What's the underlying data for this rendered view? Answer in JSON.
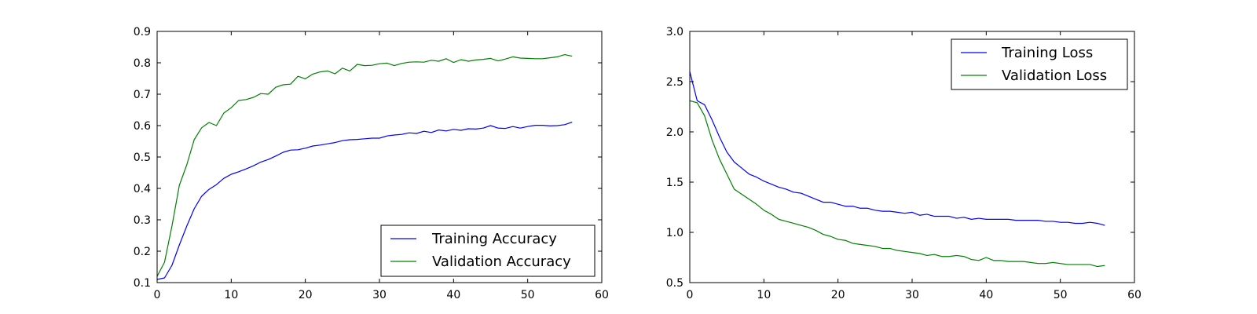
{
  "chart_data": [
    {
      "type": "line",
      "title": "",
      "xlabel": "",
      "ylabel": "",
      "xlim": [
        0,
        60
      ],
      "ylim": [
        0.1,
        0.9
      ],
      "xticks": [
        "0",
        "10",
        "20",
        "30",
        "40",
        "50",
        "60"
      ],
      "yticks": [
        "0.1",
        "0.2",
        "0.3",
        "0.4",
        "0.5",
        "0.6",
        "0.7",
        "0.8",
        "0.9"
      ],
      "grid": false,
      "legend_position": "lower-right",
      "series": [
        {
          "name": "Training Accuracy",
          "color": "#0000ff",
          "values": [
            0.11,
            0.115,
            0.155,
            0.22,
            0.28,
            0.335,
            0.375,
            0.397,
            0.412,
            0.432,
            0.445,
            0.453,
            0.462,
            0.472,
            0.484,
            0.492,
            0.503,
            0.515,
            0.522,
            0.523,
            0.528,
            0.535,
            0.538,
            0.542,
            0.546,
            0.552,
            0.555,
            0.556,
            0.558,
            0.56,
            0.56,
            0.567,
            0.57,
            0.572,
            0.577,
            0.575,
            0.582,
            0.578,
            0.586,
            0.583,
            0.588,
            0.585,
            0.59,
            0.589,
            0.592,
            0.6,
            0.592,
            0.591,
            0.597,
            0.592,
            0.597,
            0.601,
            0.601,
            0.599,
            0.6,
            0.603,
            0.611
          ]
        },
        {
          "name": "Validation Accuracy",
          "color": "#008000",
          "values": [
            0.12,
            0.165,
            0.28,
            0.41,
            0.475,
            0.555,
            0.593,
            0.61,
            0.6,
            0.64,
            0.657,
            0.68,
            0.683,
            0.69,
            0.702,
            0.7,
            0.722,
            0.73,
            0.732,
            0.757,
            0.749,
            0.764,
            0.771,
            0.774,
            0.765,
            0.783,
            0.774,
            0.795,
            0.791,
            0.792,
            0.797,
            0.799,
            0.791,
            0.798,
            0.802,
            0.803,
            0.802,
            0.808,
            0.805,
            0.813,
            0.801,
            0.81,
            0.805,
            0.809,
            0.811,
            0.814,
            0.806,
            0.812,
            0.819,
            0.815,
            0.814,
            0.813,
            0.813,
            0.816,
            0.819,
            0.826,
            0.821
          ]
        }
      ]
    },
    {
      "type": "line",
      "title": "",
      "xlabel": "",
      "ylabel": "",
      "xlim": [
        0,
        60
      ],
      "ylim": [
        0.5,
        3.0
      ],
      "xticks": [
        "0",
        "10",
        "20",
        "30",
        "40",
        "50",
        "60"
      ],
      "yticks": [
        "0.5",
        "1.0",
        "1.5",
        "2.0",
        "2.5",
        "3.0"
      ],
      "grid": false,
      "legend_position": "upper-right",
      "series": [
        {
          "name": "Training Loss",
          "color": "#0000ff",
          "values": [
            2.6,
            2.31,
            2.27,
            2.12,
            1.95,
            1.8,
            1.7,
            1.64,
            1.58,
            1.55,
            1.51,
            1.48,
            1.45,
            1.43,
            1.4,
            1.39,
            1.36,
            1.33,
            1.3,
            1.3,
            1.28,
            1.26,
            1.26,
            1.24,
            1.24,
            1.22,
            1.21,
            1.21,
            1.2,
            1.19,
            1.2,
            1.17,
            1.18,
            1.16,
            1.16,
            1.16,
            1.14,
            1.15,
            1.13,
            1.14,
            1.13,
            1.13,
            1.13,
            1.13,
            1.12,
            1.12,
            1.12,
            1.12,
            1.11,
            1.11,
            1.1,
            1.1,
            1.09,
            1.09,
            1.1,
            1.09,
            1.07
          ]
        },
        {
          "name": "Validation Loss",
          "color": "#008000",
          "values": [
            2.31,
            2.29,
            2.16,
            1.92,
            1.73,
            1.58,
            1.43,
            1.38,
            1.33,
            1.28,
            1.22,
            1.18,
            1.13,
            1.11,
            1.09,
            1.07,
            1.05,
            1.02,
            0.98,
            0.96,
            0.93,
            0.92,
            0.89,
            0.88,
            0.87,
            0.86,
            0.84,
            0.84,
            0.82,
            0.81,
            0.8,
            0.79,
            0.77,
            0.78,
            0.76,
            0.76,
            0.77,
            0.76,
            0.73,
            0.72,
            0.75,
            0.72,
            0.72,
            0.71,
            0.71,
            0.71,
            0.7,
            0.69,
            0.69,
            0.7,
            0.69,
            0.68,
            0.68,
            0.68,
            0.68,
            0.66,
            0.67
          ]
        }
      ]
    }
  ]
}
